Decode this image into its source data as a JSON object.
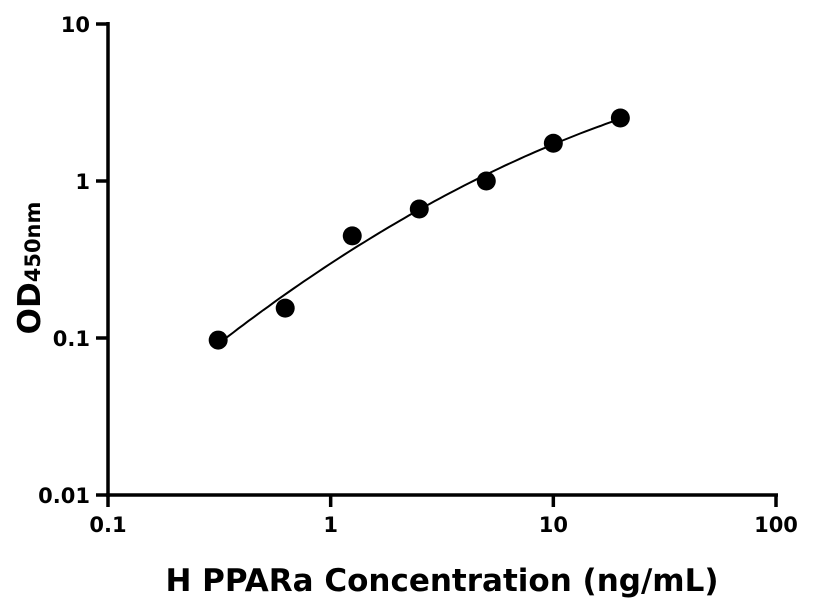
{
  "chart_data": {
    "type": "scatter",
    "title": "",
    "xlabel": "H PPARa Concentration (ng/mL)",
    "ylabel_main": "OD",
    "ylabel_sub": "450nm",
    "x_scale": "log",
    "y_scale": "log",
    "xlim": [
      0.1,
      100
    ],
    "ylim": [
      0.01,
      10
    ],
    "x_ticks": [
      0.1,
      1,
      10,
      100
    ],
    "x_tick_labels": [
      "0.1",
      "1",
      "10",
      "100"
    ],
    "y_ticks": [
      0.01,
      0.1,
      1,
      10
    ],
    "y_tick_labels": [
      "0.01",
      "0.1",
      "1",
      "10"
    ],
    "grid": false,
    "series": [
      {
        "x": [
          0.3125,
          0.625,
          1.25,
          2.5,
          5,
          10,
          20
        ],
        "y": [
          0.097,
          0.155,
          0.447,
          0.663,
          1.0,
          1.74,
          2.52
        ],
        "marker": "filled-circle",
        "fit_line": true,
        "color": "#000000"
      }
    ]
  }
}
